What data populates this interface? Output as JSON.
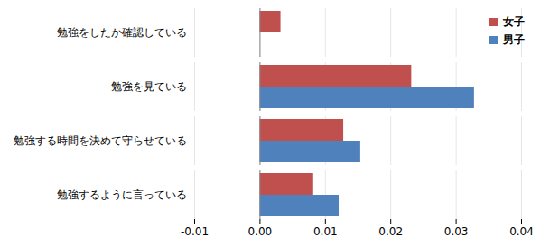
{
  "chart_data": {
    "type": "bar",
    "orientation": "horizontal",
    "categories": [
      "勉強をしたか確認している",
      "勉強を見ている",
      "勉強する時間を決めて守らせている",
      "勉強するように言っている"
    ],
    "series": [
      {
        "name": "女子",
        "color": "#c0504d",
        "values": [
          0.0032,
          0.0232,
          0.0128,
          0.0082
        ]
      },
      {
        "name": "男子",
        "color": "#4f81bd",
        "values": [
          null,
          0.0328,
          0.0154,
          0.0121
        ]
      }
    ],
    "xlim": [
      -0.01,
      0.04
    ],
    "xticks": [
      -0.01,
      {
        "value": 0,
        "label": "0.00"
      },
      0.01,
      0.02,
      0.03,
      0.04
    ],
    "grid": true,
    "legend": "top-right"
  }
}
